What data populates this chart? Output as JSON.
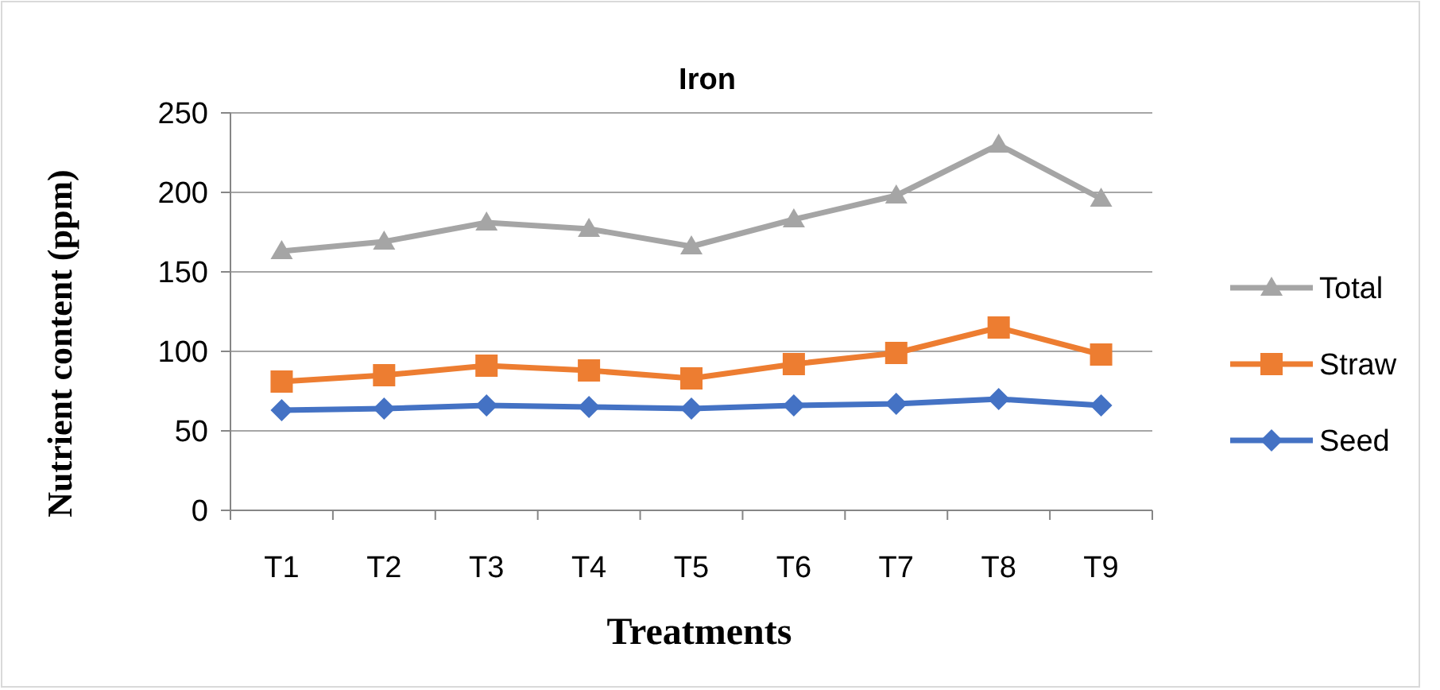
{
  "chart_data": {
    "type": "line",
    "title": "Iron",
    "xlabel": "Treatments",
    "ylabel": "Nutrient content (ppm)",
    "categories": [
      "T1",
      "T2",
      "T3",
      "T4",
      "T5",
      "T6",
      "T7",
      "T8",
      "T9"
    ],
    "series": [
      {
        "name": "Total",
        "color": "#a5a5a5",
        "marker": "triangle",
        "values": [
          163,
          169,
          181,
          177,
          166,
          183,
          198,
          230,
          196
        ]
      },
      {
        "name": "Straw",
        "color": "#ed7d31",
        "marker": "square",
        "values": [
          81,
          85,
          91,
          88,
          83,
          92,
          99,
          115,
          98
        ]
      },
      {
        "name": "Seed",
        "color": "#4472c4",
        "marker": "diamond",
        "values": [
          63,
          64,
          66,
          65,
          64,
          66,
          67,
          70,
          66
        ]
      }
    ],
    "ylim": [
      0,
      250
    ],
    "yticks": [
      0,
      50,
      100,
      150,
      200,
      250
    ],
    "grid": "y",
    "legend": "right"
  }
}
